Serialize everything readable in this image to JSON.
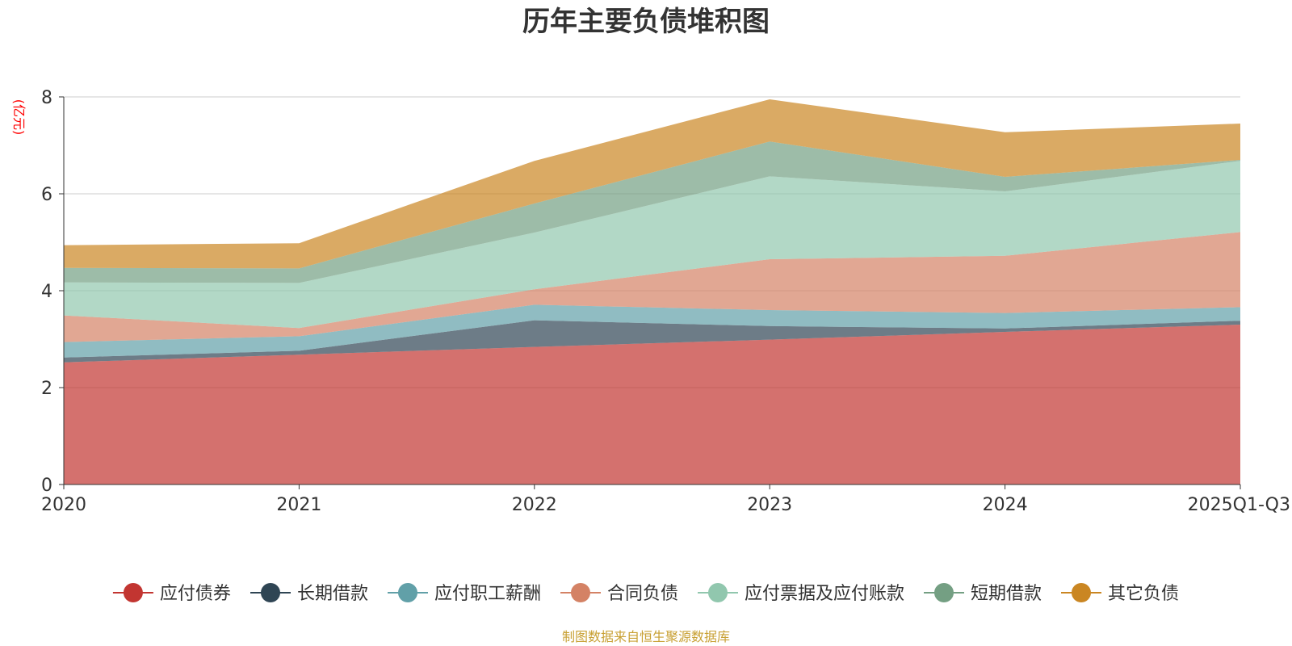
{
  "chart_data": {
    "type": "area",
    "stacked": true,
    "title": "历年主要负债堆积图",
    "unit_label": "(亿元)",
    "categories": [
      "2020",
      "2021",
      "2022",
      "2023",
      "2024",
      "2025Q1-Q3"
    ],
    "ylim": [
      0,
      8
    ],
    "yticks": [
      0,
      2,
      4,
      6,
      8
    ],
    "grid": true,
    "legend_position": "bottom",
    "series": [
      {
        "name": "应付债券",
        "color": "#c23531",
        "values": [
          2.52,
          2.68,
          2.84,
          2.99,
          3.15,
          3.3
        ]
      },
      {
        "name": "长期借款",
        "color": "#2f4554",
        "values": [
          0.1,
          0.08,
          0.55,
          0.28,
          0.07,
          0.08
        ]
      },
      {
        "name": "应付职工薪酬",
        "color": "#61a0a8",
        "values": [
          0.32,
          0.3,
          0.32,
          0.33,
          0.32,
          0.28
        ]
      },
      {
        "name": "合同负债",
        "color": "#d48265",
        "values": [
          0.55,
          0.17,
          0.32,
          1.05,
          1.18,
          1.55
        ]
      },
      {
        "name": "应付票据及应付账款",
        "color": "#91c7ae",
        "values": [
          0.68,
          0.93,
          1.17,
          1.71,
          1.33,
          1.47
        ]
      },
      {
        "name": "短期借款",
        "color": "#749f83",
        "values": [
          0.3,
          0.3,
          0.6,
          0.72,
          0.3,
          0.02
        ]
      },
      {
        "name": "其它负债",
        "color": "#ca8622",
        "values": [
          0.47,
          0.52,
          0.88,
          0.87,
          0.92,
          0.75
        ]
      }
    ],
    "source_note": "制图数据来自恒生聚源数据库"
  },
  "colors": {
    "unit_label": "#ff0000",
    "source_note": "#c8a033",
    "grid": "#cccccc",
    "axis": "#333333"
  }
}
